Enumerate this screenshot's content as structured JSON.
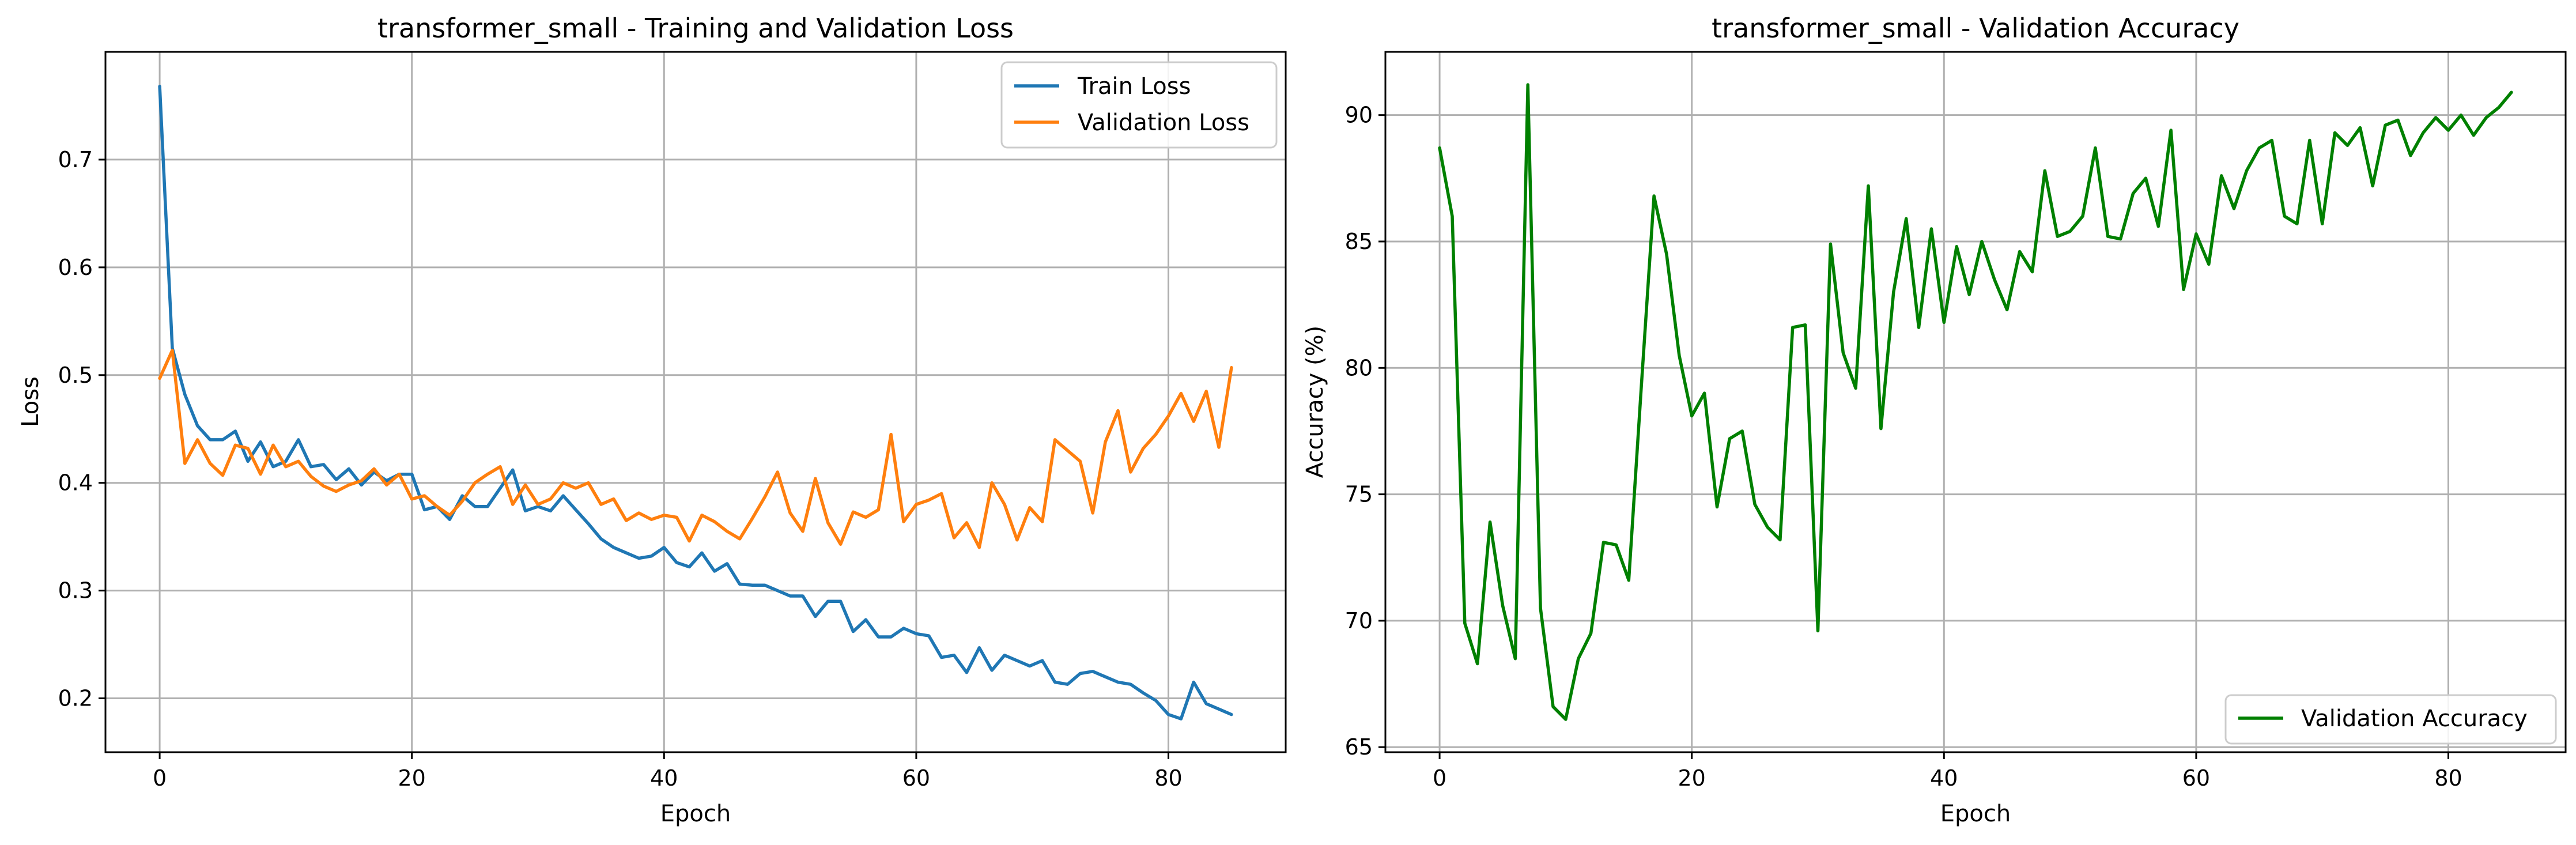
{
  "chart_data": [
    {
      "type": "line",
      "title": "transformer_small - Training and Validation Loss",
      "xlabel": "Epoch",
      "ylabel": "Loss",
      "xlim": [
        -4.3,
        89.3
      ],
      "ylim": [
        0.15,
        0.8
      ],
      "xticks": [
        0,
        20,
        40,
        60,
        80
      ],
      "yticks": [
        0.2,
        0.3,
        0.4,
        0.5,
        0.6,
        0.7
      ],
      "ytick_labels": [
        "0.2",
        "0.3",
        "0.4",
        "0.5",
        "0.6",
        "0.7"
      ],
      "grid": true,
      "legend": "top-right",
      "series": [
        {
          "name": "Train Loss",
          "color": "#1f77b4",
          "values": [
            0.768,
            0.525,
            0.482,
            0.453,
            0.44,
            0.44,
            0.448,
            0.42,
            0.438,
            0.415,
            0.42,
            0.44,
            0.415,
            0.417,
            0.403,
            0.413,
            0.398,
            0.41,
            0.402,
            0.408,
            0.408,
            0.375,
            0.378,
            0.366,
            0.388,
            0.378,
            0.378,
            0.395,
            0.412,
            0.374,
            0.378,
            0.374,
            0.388,
            0.375,
            0.362,
            0.348,
            0.34,
            0.335,
            0.33,
            0.332,
            0.34,
            0.326,
            0.322,
            0.335,
            0.318,
            0.325,
            0.306,
            0.305,
            0.305,
            0.3,
            0.295,
            0.295,
            0.276,
            0.29,
            0.29,
            0.262,
            0.273,
            0.257,
            0.257,
            0.265,
            0.26,
            0.258,
            0.238,
            0.24,
            0.224,
            0.247,
            0.226,
            0.24,
            0.235,
            0.23,
            0.235,
            0.215,
            0.213,
            0.223,
            0.225,
            0.22,
            0.215,
            0.213,
            0.205,
            0.198,
            0.185,
            0.181,
            0.215,
            0.195,
            0.19,
            0.185
          ]
        },
        {
          "name": "Validation Loss",
          "color": "#ff7f0e",
          "values": [
            0.497,
            0.523,
            0.418,
            0.44,
            0.418,
            0.407,
            0.435,
            0.432,
            0.408,
            0.435,
            0.415,
            0.42,
            0.406,
            0.397,
            0.392,
            0.398,
            0.402,
            0.413,
            0.398,
            0.408,
            0.385,
            0.388,
            0.378,
            0.37,
            0.383,
            0.4,
            0.408,
            0.415,
            0.38,
            0.398,
            0.38,
            0.385,
            0.4,
            0.395,
            0.4,
            0.38,
            0.385,
            0.365,
            0.372,
            0.366,
            0.37,
            0.368,
            0.346,
            0.37,
            0.364,
            0.355,
            0.348,
            0.367,
            0.387,
            0.41,
            0.372,
            0.355,
            0.404,
            0.363,
            0.343,
            0.373,
            0.368,
            0.375,
            0.445,
            0.364,
            0.38,
            0.384,
            0.39,
            0.349,
            0.363,
            0.34,
            0.4,
            0.38,
            0.347,
            0.377,
            0.364,
            0.44,
            0.43,
            0.42,
            0.372,
            0.438,
            0.467,
            0.41,
            0.432,
            0.445,
            0.462,
            0.483,
            0.457,
            0.485,
            0.433,
            0.507
          ]
        }
      ]
    },
    {
      "type": "line",
      "title": "transformer_small - Validation Accuracy",
      "xlabel": "Epoch",
      "ylabel": "Accuracy (%)",
      "xlim": [
        -4.3,
        89.3
      ],
      "ylim": [
        64.8,
        92.5
      ],
      "xticks": [
        0,
        20,
        40,
        60,
        80
      ],
      "yticks": [
        65,
        70,
        75,
        80,
        85,
        90
      ],
      "ytick_labels": [
        "65",
        "70",
        "75",
        "80",
        "85",
        "90"
      ],
      "grid": true,
      "legend": "bottom-right",
      "series": [
        {
          "name": "Validation Accuracy",
          "color": "#008000",
          "values": [
            88.7,
            86.0,
            69.9,
            68.3,
            73.9,
            70.6,
            68.5,
            91.2,
            70.5,
            66.6,
            66.1,
            68.5,
            69.5,
            73.1,
            73.0,
            71.6,
            79.3,
            86.8,
            84.5,
            80.5,
            78.1,
            79.0,
            74.5,
            77.2,
            77.5,
            74.6,
            73.7,
            73.2,
            81.6,
            81.7,
            69.6,
            84.9,
            80.6,
            79.2,
            87.2,
            77.6,
            83.0,
            85.9,
            81.6,
            85.5,
            81.8,
            84.8,
            82.9,
            85.0,
            83.5,
            82.3,
            84.6,
            83.8,
            87.8,
            85.2,
            85.4,
            86.0,
            88.7,
            85.2,
            85.1,
            86.9,
            87.5,
            85.6,
            89.4,
            83.1,
            85.3,
            84.1,
            87.6,
            86.3,
            87.8,
            88.7,
            89.0,
            86.0,
            85.7,
            89.0,
            85.7,
            89.3,
            88.8,
            89.5,
            87.2,
            89.6,
            89.8,
            88.4,
            89.3,
            89.9,
            89.4,
            90.0,
            89.2,
            89.9,
            90.3,
            90.9
          ]
        }
      ]
    }
  ]
}
